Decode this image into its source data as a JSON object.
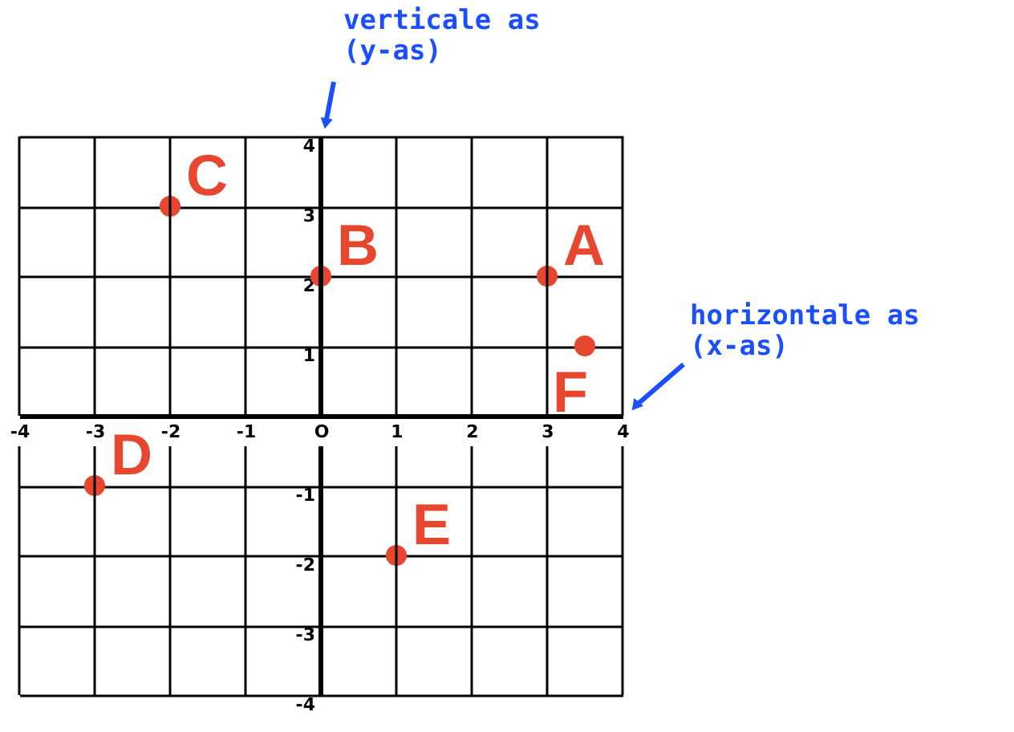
{
  "chart_data": {
    "type": "scatter",
    "x": [
      3,
      0,
      -2,
      -3,
      1,
      3.5
    ],
    "values": [
      2,
      2,
      3,
      -1,
      -2,
      1
    ],
    "color": "#e8472f",
    "marker": "circle",
    "xlim": [
      -4,
      4
    ],
    "ylim": [
      -4,
      4
    ],
    "xticks": [
      -4,
      -3,
      -2,
      -1,
      {
        "value": 0,
        "label": "O"
      },
      1,
      2,
      3,
      4
    ],
    "yticks": [
      -4,
      -3,
      -2,
      -1,
      1,
      2,
      3,
      4
    ],
    "grid": true,
    "annotations": [
      {
        "text": "A",
        "x": 3,
        "y": 2
      },
      {
        "text": "B",
        "x": 0,
        "y": 2
      },
      {
        "text": "C",
        "x": -2,
        "y": 3
      },
      {
        "text": "D",
        "x": -3,
        "y": -1
      },
      {
        "text": "E",
        "x": 1,
        "y": -2
      },
      {
        "text": "F",
        "x": 3.5,
        "y": 1
      },
      "verticale as\n(y-as)",
      "horizontale as\n(x-as)"
    ]
  }
}
